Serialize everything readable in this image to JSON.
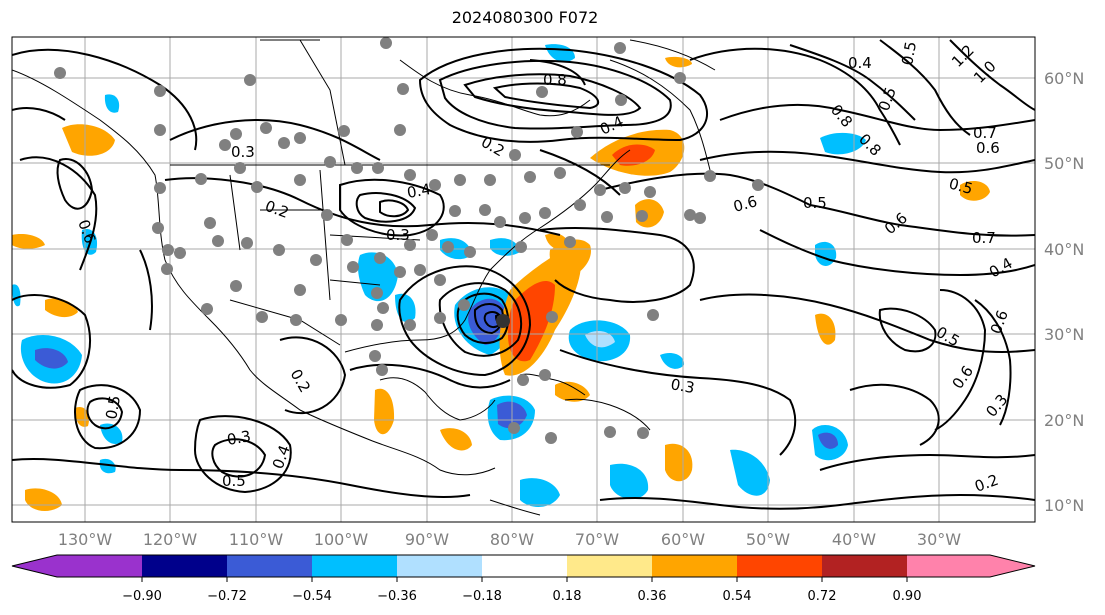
{
  "title": "2024080300 F072",
  "map": {
    "longitude_labels": [
      "130°W",
      "120°W",
      "110°W",
      "100°W",
      "90°W",
      "80°W",
      "70°W",
      "60°W",
      "50°W",
      "40°W",
      "30°W"
    ],
    "latitude_labels": [
      "60°N",
      "50°N",
      "40°N",
      "30°N",
      "20°N",
      "10°N"
    ],
    "contour_labels": [
      "0.8",
      "0.4",
      "0.2",
      "0.3",
      "0.4",
      "0.2",
      "0.3",
      "0.6",
      "0.5",
      "0.3",
      "0.2",
      "0.4",
      "0.5",
      "0.3",
      "0.6",
      "0.5",
      "0.6",
      "0.7",
      "0.4",
      "0.5",
      "0.6",
      "0.5",
      "0.6",
      "0.3",
      "0.2",
      "0.7",
      "0.6",
      "1.2",
      "1.0",
      "0.4",
      "0.5",
      "0.8",
      "0.8",
      "0.5"
    ],
    "fill_colors": {
      "negative": [
        "#4b0082",
        "#00008b",
        "#3b5bd6",
        "#00bfff",
        "#b0e0ff"
      ],
      "positive": [
        "#ffe98a",
        "#ffa500",
        "#ff4500",
        "#b22222",
        "#ff82ab"
      ]
    }
  },
  "colorbar": {
    "ticks": [
      "−0.90",
      "−0.72",
      "−0.54",
      "−0.36",
      "−0.18",
      "0.18",
      "0.36",
      "0.54",
      "0.72",
      "0.90"
    ],
    "colors": [
      "#9a32cd",
      "#00008b",
      "#3b5bd6",
      "#00bfff",
      "#b0e0ff",
      "#ffffff",
      "#ffe98a",
      "#ffa500",
      "#ff4500",
      "#b22222",
      "#ff82ab"
    ]
  }
}
